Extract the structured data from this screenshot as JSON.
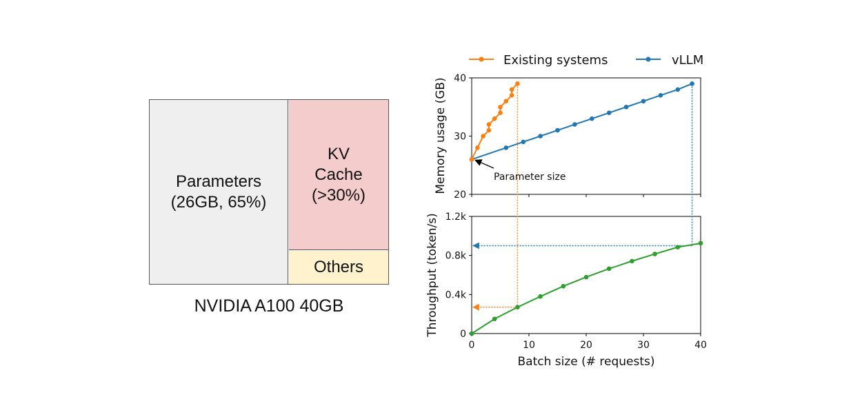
{
  "memory_layout": {
    "parameters_label": "Parameters\n(26GB, 65%)",
    "kv_cache_label": "KV\nCache\n(>30%)",
    "others_label": "Others",
    "caption": "NVIDIA A100 40GB",
    "colors": {
      "parameters": "#efefef",
      "kv_cache": "#f4cccc",
      "others": "#fff2cc"
    }
  },
  "chart_data": [
    {
      "type": "line",
      "title": "",
      "xlabel": "",
      "ylabel": "Memory usage (GB)",
      "xlim": [
        0,
        40
      ],
      "ylim": [
        20,
        40
      ],
      "yticks": [
        20,
        30,
        40
      ],
      "ytick_labels": [
        "20",
        "30",
        "40"
      ],
      "legend": {
        "placement": "top",
        "entries": [
          "Existing systems",
          "vLLM"
        ]
      },
      "series": [
        {
          "name": "Existing systems",
          "color": "#ff7f0e",
          "points": [
            [
              0,
              26
            ],
            [
              1,
              28
            ],
            [
              2,
              30
            ],
            [
              3,
              31
            ],
            [
              3,
              32
            ],
            [
              4,
              33
            ],
            [
              5,
              34
            ],
            [
              5,
              35
            ],
            [
              6,
              36
            ],
            [
              7,
              37
            ],
            [
              7,
              38
            ],
            [
              8,
              39
            ]
          ]
        },
        {
          "name": "vLLM",
          "color": "#1f77b4",
          "points": [
            [
              0,
              26
            ],
            [
              6,
              28
            ],
            [
              9,
              29
            ],
            [
              12,
              30
            ],
            [
              15,
              31
            ],
            [
              18,
              32
            ],
            [
              21,
              33
            ],
            [
              24,
              34
            ],
            [
              27,
              35
            ],
            [
              30,
              36
            ],
            [
              33,
              37
            ],
            [
              36,
              38
            ],
            [
              38.5,
              39
            ]
          ]
        }
      ],
      "annotation": {
        "text": "Parameter size",
        "x": 0,
        "y": 26
      }
    },
    {
      "type": "line",
      "title": "",
      "xlabel": "Batch size (# requests)",
      "ylabel": "Throughput (token/s)",
      "xlim": [
        0,
        40
      ],
      "ylim": [
        0,
        1200
      ],
      "xticks": [
        0,
        10,
        20,
        30,
        40
      ],
      "xtick_labels": [
        "0",
        "10",
        "20",
        "30",
        "40"
      ],
      "yticks": [
        0,
        400,
        800,
        1200
      ],
      "ytick_labels": [
        "0",
        "0.4k",
        "0.8k",
        "1.2k"
      ],
      "series": [
        {
          "name": "Throughput",
          "color": "#2ca02c",
          "points": [
            [
              0,
              0
            ],
            [
              4,
              150
            ],
            [
              8,
              270
            ],
            [
              12,
              380
            ],
            [
              16,
              485
            ],
            [
              20,
              578
            ],
            [
              24,
              664
            ],
            [
              28,
              742
            ],
            [
              32,
              815
            ],
            [
              36,
              885
            ],
            [
              40,
              925
            ]
          ]
        }
      ],
      "markers": [
        {
          "series": "Existing systems",
          "color": "#ff7f0e",
          "batch": 8,
          "throughput": 270
        },
        {
          "series": "vLLM",
          "color": "#1f77b4",
          "batch": 38.5,
          "throughput": 900
        }
      ]
    }
  ]
}
